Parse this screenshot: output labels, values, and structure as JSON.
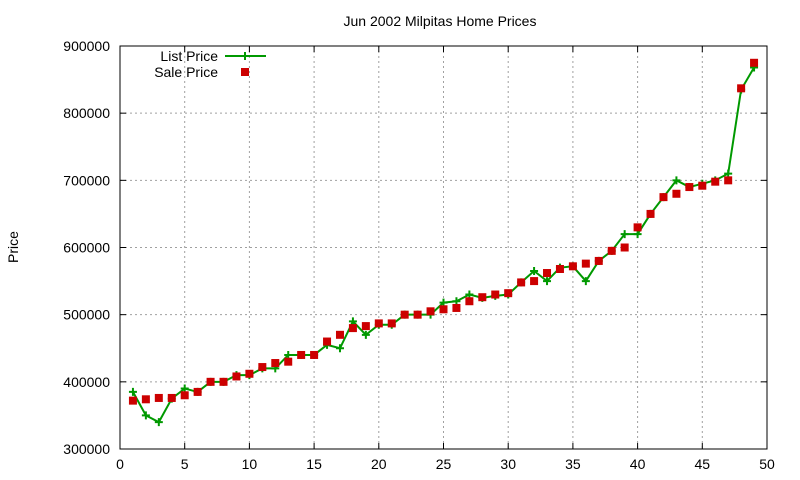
{
  "chart_data": {
    "type": "line",
    "title": "Jun 2002 Milpitas Home Prices",
    "xlabel": "",
    "ylabel": "Price",
    "xlim": [
      0,
      50
    ],
    "ylim": [
      300000,
      900000
    ],
    "x_ticks": [
      0,
      5,
      10,
      15,
      20,
      25,
      30,
      35,
      40,
      45,
      50
    ],
    "y_ticks": [
      300000,
      400000,
      500000,
      600000,
      700000,
      800000,
      900000
    ],
    "grid": true,
    "legend_position": "top-left",
    "x": [
      1,
      2,
      3,
      4,
      5,
      6,
      7,
      8,
      9,
      10,
      11,
      12,
      13,
      14,
      15,
      16,
      17,
      18,
      19,
      20,
      21,
      22,
      23,
      24,
      25,
      26,
      27,
      28,
      29,
      30,
      31,
      32,
      33,
      34,
      35,
      36,
      37,
      38,
      39,
      40,
      41,
      42,
      43,
      44,
      45,
      46,
      47,
      48,
      49
    ],
    "series": [
      {
        "name": "List Price",
        "style": "line-plus",
        "color": "#009900",
        "values": [
          385000,
          350000,
          340000,
          375000,
          390000,
          385000,
          400000,
          400000,
          410000,
          410000,
          420000,
          420000,
          440000,
          440000,
          440000,
          455000,
          450000,
          490000,
          470000,
          485000,
          485000,
          500000,
          500000,
          500000,
          518000,
          520000,
          530000,
          525000,
          528000,
          530000,
          548000,
          565000,
          550000,
          570000,
          572000,
          550000,
          580000,
          595000,
          620000,
          620000,
          650000,
          675000,
          700000,
          690000,
          695000,
          700000,
          710000,
          835000,
          868000
        ]
      },
      {
        "name": "Sale Price",
        "style": "square",
        "color": "#cc0000",
        "values": [
          372000,
          374000,
          376000,
          376000,
          380000,
          385000,
          400000,
          400000,
          408000,
          412000,
          422000,
          428000,
          430000,
          440000,
          440000,
          460000,
          470000,
          480000,
          483000,
          487000,
          487000,
          500000,
          500000,
          505000,
          508000,
          510000,
          520000,
          526000,
          530000,
          532000,
          548000,
          550000,
          562000,
          568000,
          572000,
          576000,
          580000,
          595000,
          600000,
          630000,
          650000,
          675000,
          680000,
          690000,
          692000,
          698000,
          700000,
          837000,
          875000
        ]
      }
    ]
  }
}
